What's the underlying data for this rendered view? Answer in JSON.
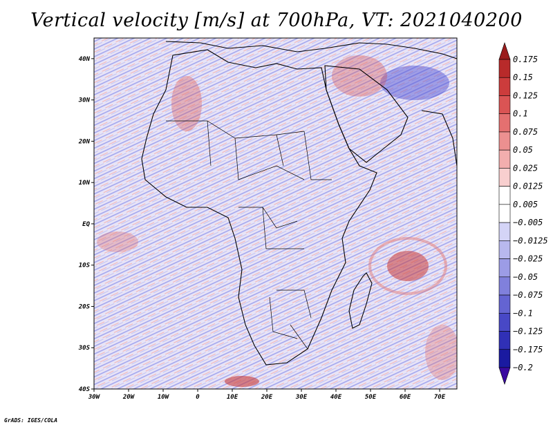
{
  "title": "Vertical velocity [m/s] at 700hPa, VT: 2021040200",
  "credit": "GrADS: IGES/COLA",
  "map": {
    "lat_range": [
      -40,
      45
    ],
    "lon_range": [
      -30,
      75
    ],
    "lat_ticks": [
      "40N",
      "30N",
      "20N",
      "10N",
      "EQ",
      "10S",
      "20S",
      "30S",
      "40S"
    ],
    "lat_values": [
      40,
      30,
      20,
      10,
      0,
      -10,
      -20,
      -30,
      -40
    ],
    "lon_ticks": [
      "30W",
      "20W",
      "10W",
      "0",
      "10E",
      "20E",
      "30E",
      "40E",
      "50E",
      "60E",
      "70E"
    ],
    "lon_values": [
      -30,
      -20,
      -10,
      0,
      10,
      20,
      30,
      40,
      50,
      60,
      70
    ],
    "colors": {
      "negative": "#8a8ef0",
      "positive": "#f09a9a",
      "background": "#e6e2f4",
      "coast": "#000000"
    }
  },
  "colorbar": {
    "labels": [
      "0.175",
      "0.15",
      "0.125",
      "0.1",
      "0.075",
      "0.05",
      "0.025",
      "0.0125",
      "0.005",
      "−0.005",
      "−0.0125",
      "−0.025",
      "−0.05",
      "−0.075",
      "−0.1",
      "−0.125",
      "−0.175",
      "−0.2"
    ],
    "colors": [
      "#9b1d1d",
      "#b82a2a",
      "#cc3c3c",
      "#da5454",
      "#e47070",
      "#ec9090",
      "#f2aeae",
      "#f8cfcf",
      "#ffffff",
      "#ffffff",
      "#d4d4f6",
      "#b8b8ee",
      "#9c9ce6",
      "#8080dc",
      "#6464d2",
      "#4848c6",
      "#3030b6",
      "#1a1aa0",
      "#3a0aa0"
    ]
  }
}
